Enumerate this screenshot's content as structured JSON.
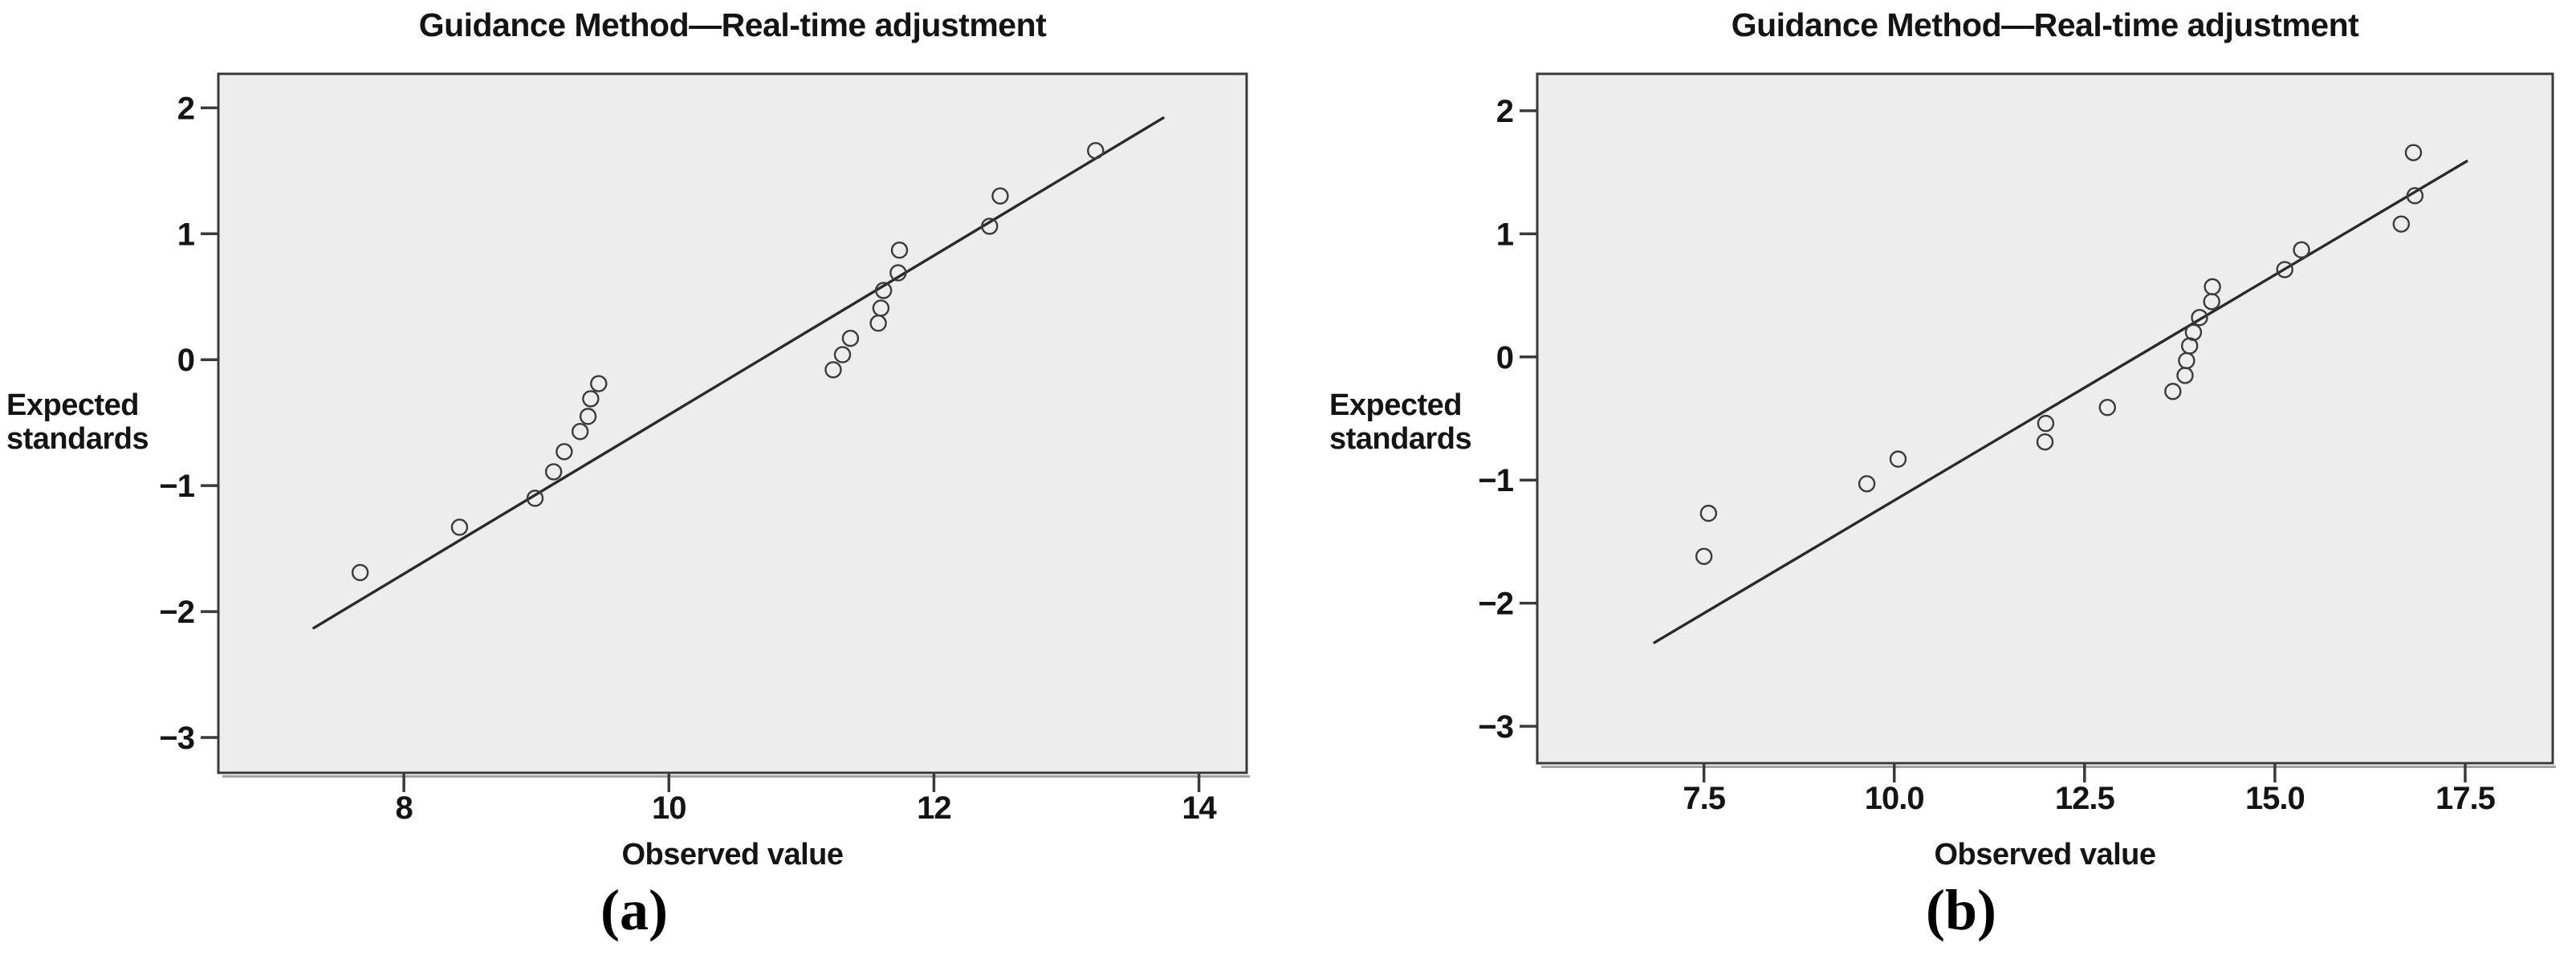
{
  "figure": {
    "description": "Two SPSS-style normal Q-Q plots side by side",
    "colors": {
      "page_bg": "#ffffff",
      "plot_bg": "#ededed",
      "frame": "#3a3a3a",
      "frame_shadow": "#a3a3a3",
      "text": "#141414",
      "fit_line": "#2a2a2a",
      "marker": "#3b3b3b"
    },
    "marker_style": {
      "radius": 9.5,
      "stroke_width": 2.4
    }
  },
  "chart_data": [
    {
      "type": "scatter",
      "title": "Guidance Method—Real-time adjustment",
      "xlabel": "Observed value",
      "ylabel_lines": [
        "Expected",
        "standards"
      ],
      "caption": "(a)",
      "grid": false,
      "legend": null,
      "xlim": [
        6.6,
        14.36
      ],
      "ylim": [
        -3.28,
        2.27
      ],
      "xticks": [
        8,
        10,
        12,
        14
      ],
      "xtick_labels": [
        "8",
        "10",
        "12",
        "14"
      ],
      "yticks": [
        2,
        1,
        0,
        -1,
        -2,
        -3
      ],
      "ytick_labels": [
        "2",
        "1",
        "0",
        "−1",
        "−2",
        "−3"
      ],
      "fit_line": {
        "x1": 7.32,
        "y1": -2.13,
        "x2": 13.73,
        "y2": 1.92
      },
      "points": [
        [
          7.67,
          -1.69
        ],
        [
          8.42,
          -1.33
        ],
        [
          8.99,
          -1.1
        ],
        [
          9.13,
          -0.89
        ],
        [
          9.21,
          -0.73
        ],
        [
          9.33,
          -0.57
        ],
        [
          9.39,
          -0.45
        ],
        [
          9.41,
          -0.31
        ],
        [
          9.47,
          -0.19
        ],
        [
          11.24,
          -0.08
        ],
        [
          11.31,
          0.04
        ],
        [
          11.37,
          0.17
        ],
        [
          11.58,
          0.29
        ],
        [
          11.6,
          0.41
        ],
        [
          11.62,
          0.55
        ],
        [
          11.73,
          0.69
        ],
        [
          11.74,
          0.87
        ],
        [
          12.42,
          1.06
        ],
        [
          12.5,
          1.3
        ],
        [
          13.22,
          1.66
        ]
      ]
    },
    {
      "type": "scatter",
      "title": "Guidance Method—Real-time adjustment",
      "xlabel": "Observed value",
      "ylabel_lines": [
        "Expected",
        "standards"
      ],
      "caption": "(b)",
      "grid": false,
      "legend": null,
      "xlim": [
        5.31,
        18.65
      ],
      "ylim": [
        -3.3,
        2.3
      ],
      "xticks": [
        7.5,
        10,
        12.5,
        15,
        17.5
      ],
      "xtick_labels": [
        "7.5",
        "10.0",
        "12.5",
        "15.0",
        "17.5"
      ],
      "yticks": [
        2,
        1,
        0,
        -1,
        -2,
        -3
      ],
      "ytick_labels": [
        "2",
        "1",
        "0",
        "−1",
        "−2",
        "−3"
      ],
      "fit_line": {
        "x1": 6.85,
        "y1": -2.32,
        "x2": 17.52,
        "y2": 1.59
      },
      "points": [
        [
          7.5,
          -1.62
        ],
        [
          7.56,
          -1.27
        ],
        [
          9.64,
          -1.03
        ],
        [
          10.05,
          -0.83
        ],
        [
          11.98,
          -0.69
        ],
        [
          11.99,
          -0.54
        ],
        [
          12.8,
          -0.41
        ],
        [
          13.66,
          -0.28
        ],
        [
          13.82,
          -0.15
        ],
        [
          13.84,
          -0.03
        ],
        [
          13.88,
          0.09
        ],
        [
          13.93,
          0.2
        ],
        [
          14.01,
          0.32
        ],
        [
          14.17,
          0.45
        ],
        [
          14.18,
          0.57
        ],
        [
          15.13,
          0.71
        ],
        [
          15.35,
          0.87
        ],
        [
          16.66,
          1.08
        ],
        [
          16.84,
          1.31
        ],
        [
          16.82,
          1.66
        ]
      ]
    }
  ]
}
